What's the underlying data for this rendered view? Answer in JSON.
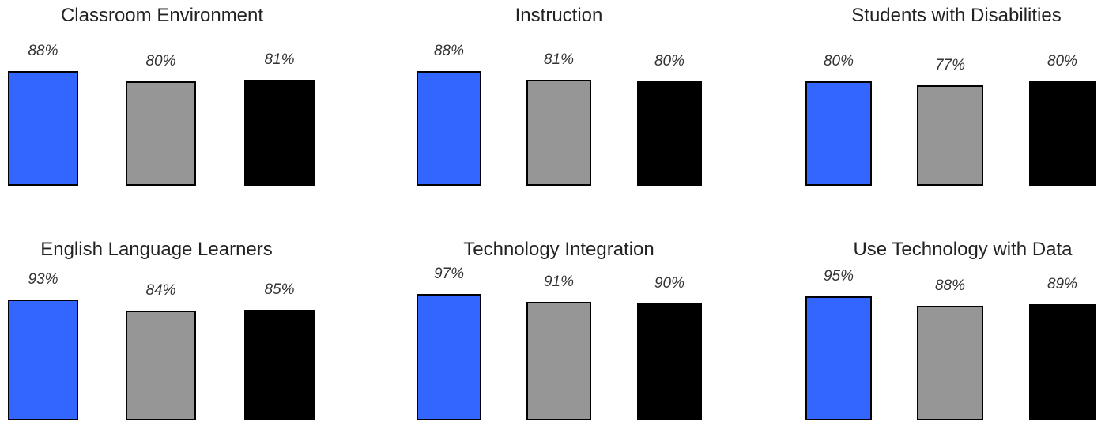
{
  "colors": [
    "#3366ff",
    "#969696",
    "#000000"
  ],
  "chart_data": [
    {
      "type": "bar",
      "title": "Classroom Environment",
      "values": [
        88,
        80,
        81
      ],
      "labels": [
        "88%",
        "80%",
        "81%"
      ]
    },
    {
      "type": "bar",
      "title": "Instruction",
      "values": [
        88,
        81,
        80
      ],
      "labels": [
        "88%",
        "81%",
        "80%"
      ]
    },
    {
      "type": "bar",
      "title": "Students with Disabilities",
      "values": [
        80,
        77,
        80
      ],
      "labels": [
        "80%",
        "77%",
        "80%"
      ]
    },
    {
      "type": "bar",
      "title": "English Language Learners",
      "values": [
        93,
        84,
        85
      ],
      "labels": [
        "93%",
        "84%",
        "85%"
      ]
    },
    {
      "type": "bar",
      "title": "Technology Integration",
      "values": [
        97,
        91,
        90
      ],
      "labels": [
        "97%",
        "91%",
        "90%"
      ]
    },
    {
      "type": "bar",
      "title": "Use Technology with Data",
      "values": [
        95,
        88,
        89
      ],
      "labels": [
        "95%",
        "88%",
        "89%"
      ]
    }
  ]
}
